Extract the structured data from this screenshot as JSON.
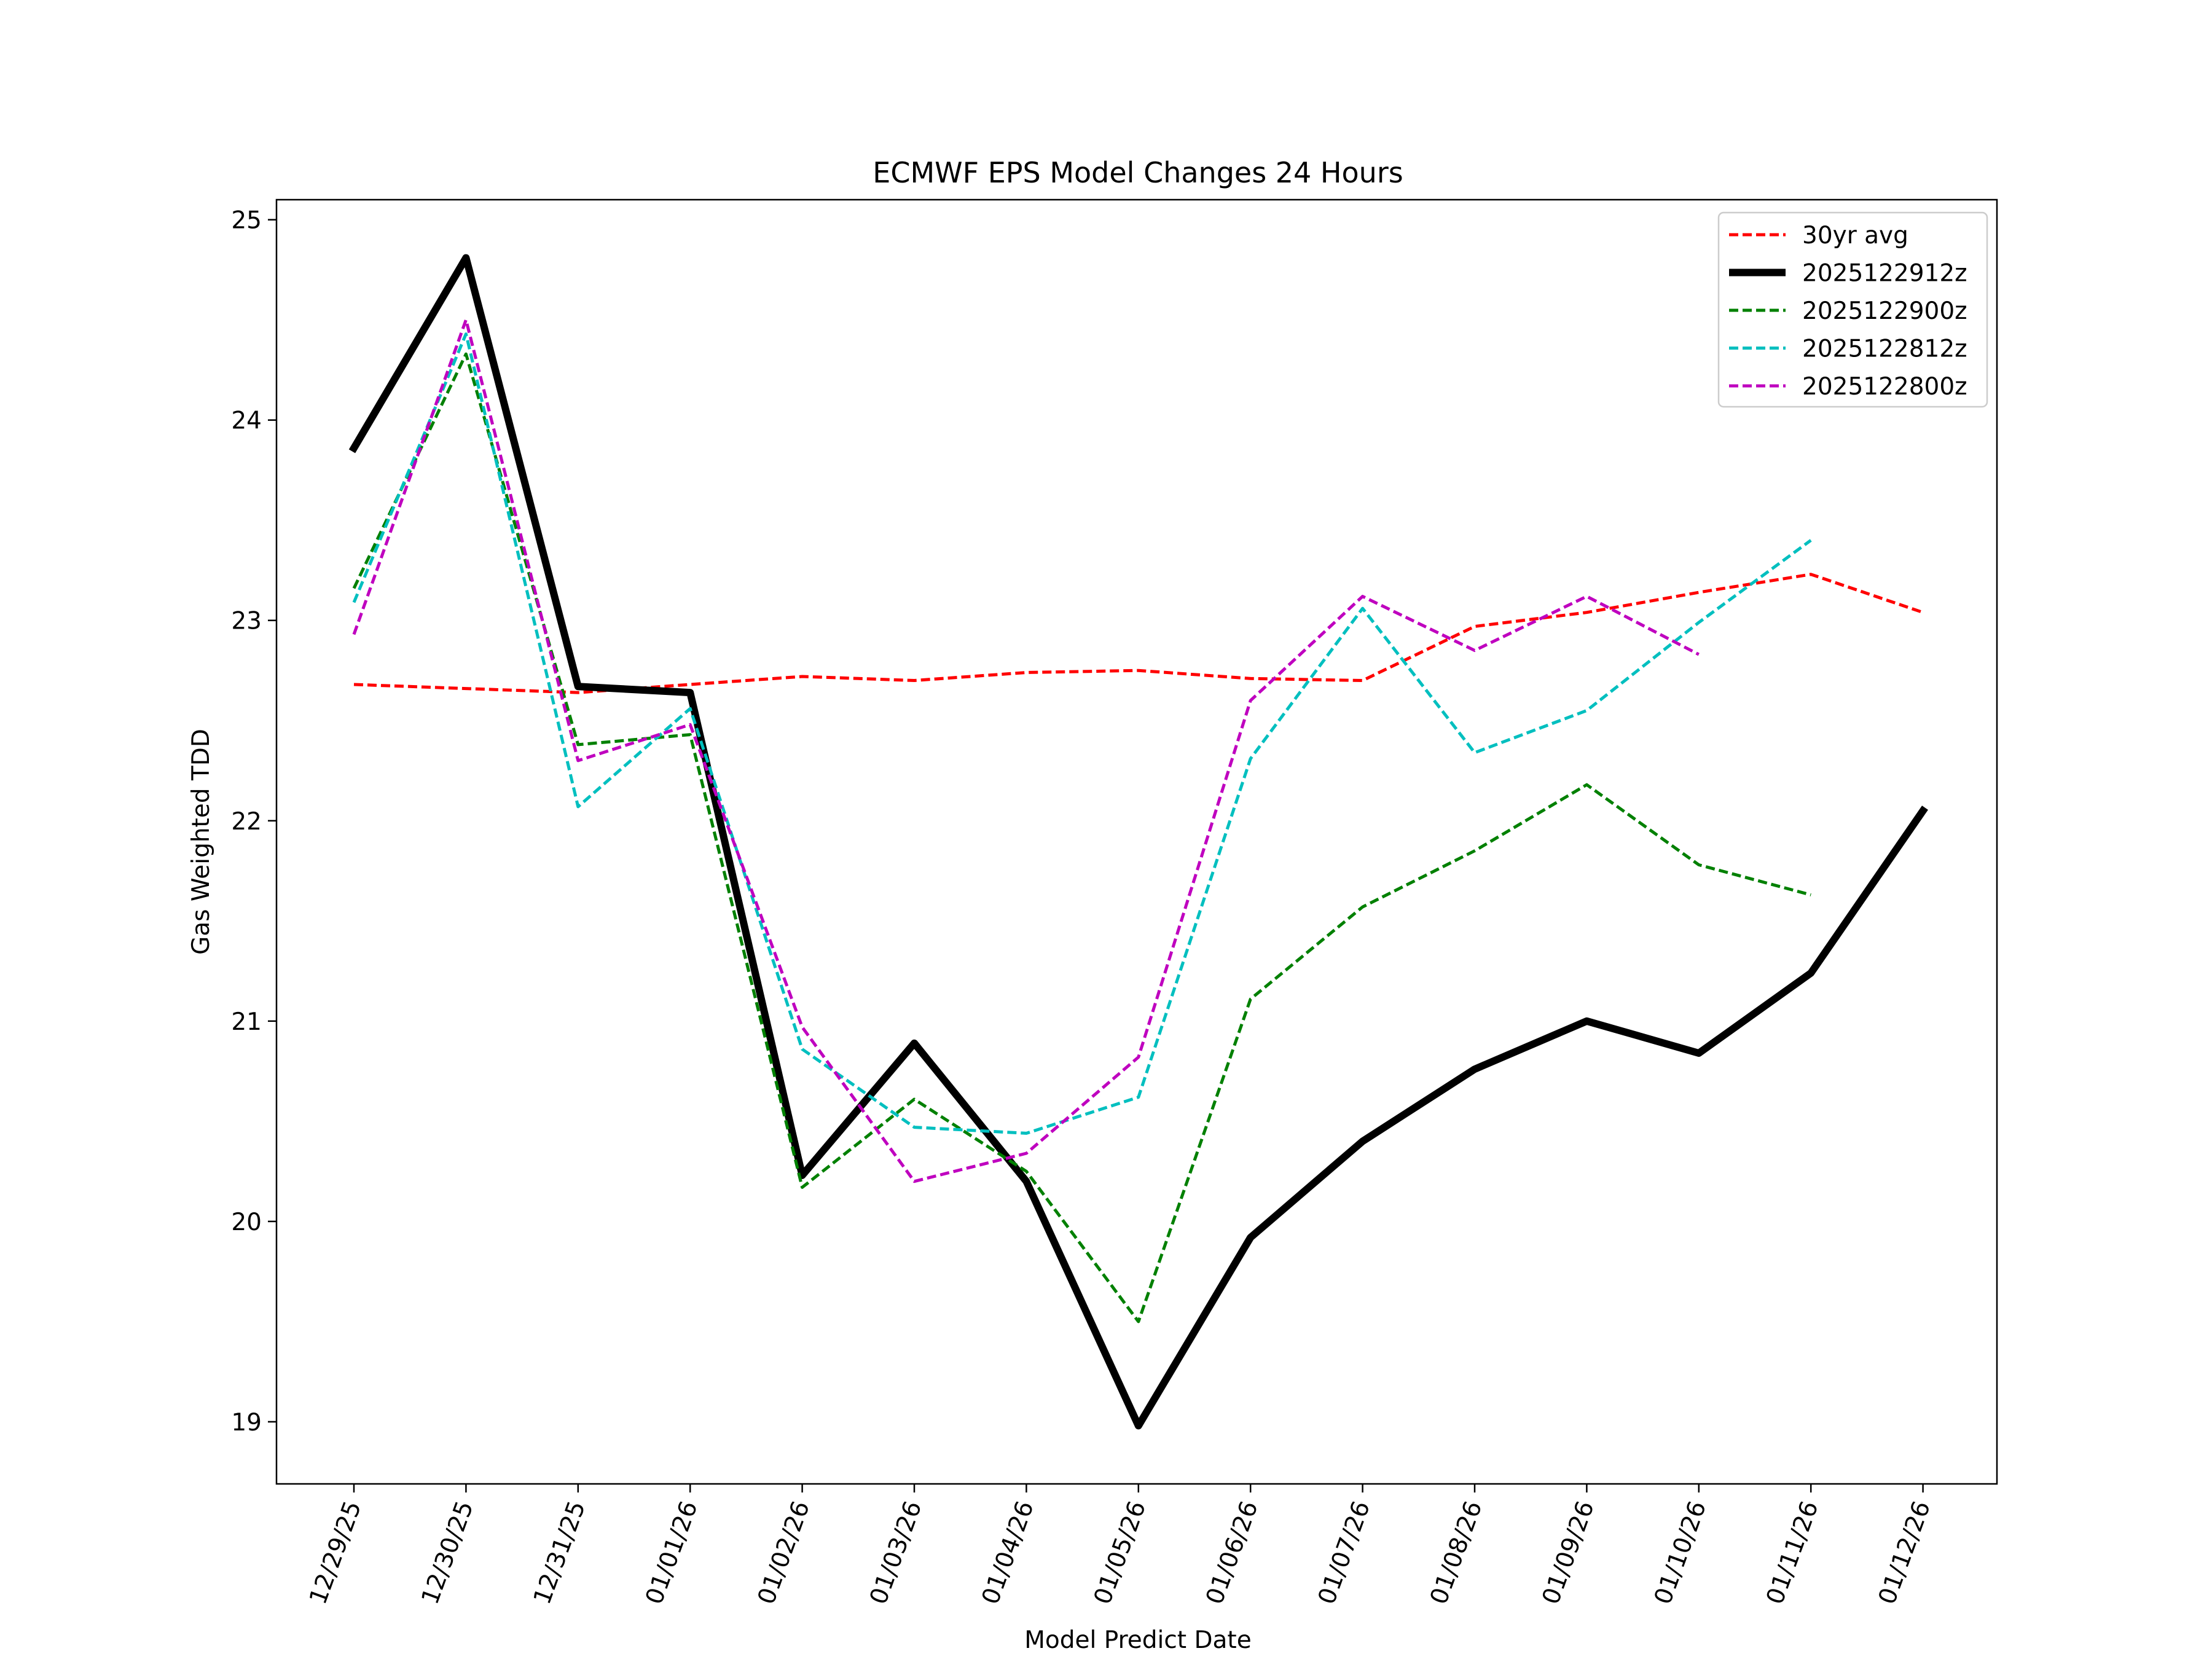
{
  "chart_data": {
    "type": "line",
    "title": "ECMWF EPS Model Changes 24 Hours",
    "xlabel": "Model Predict Date",
    "ylabel": "Gas Weighted TDD",
    "categories": [
      "12/29/25",
      "12/30/25",
      "12/31/25",
      "01/01/26",
      "01/02/26",
      "01/03/26",
      "01/04/26",
      "01/05/26",
      "01/06/26",
      "01/07/26",
      "01/08/26",
      "01/09/26",
      "01/10/26",
      "01/11/26",
      "01/12/26"
    ],
    "yticks": [
      "19",
      "20",
      "21",
      "22",
      "23",
      "24",
      "25"
    ],
    "ylim": [
      18.69,
      25.1
    ],
    "grid": false,
    "legend_position": "top-right",
    "series": [
      {
        "name": "30yr avg",
        "color": "#ff0000",
        "style": "dashed",
        "width": "thin",
        "values": [
          22.68,
          22.66,
          22.64,
          22.68,
          22.72,
          22.7,
          22.74,
          22.75,
          22.71,
          22.7,
          22.97,
          23.04,
          23.14,
          23.23,
          23.04
        ]
      },
      {
        "name": "2025122912z",
        "color": "#000000",
        "style": "solid",
        "width": "thick",
        "values": [
          23.86,
          24.81,
          22.67,
          22.64,
          20.23,
          20.89,
          20.2,
          18.98,
          19.92,
          20.4,
          20.76,
          21.0,
          20.84,
          21.24,
          22.05
        ]
      },
      {
        "name": "2025122900z",
        "color": "#008000",
        "style": "dashed",
        "width": "thin",
        "values": [
          23.16,
          24.33,
          22.38,
          22.43,
          20.17,
          20.61,
          20.25,
          19.5,
          21.11,
          21.57,
          21.85,
          22.18,
          21.78,
          21.63,
          null
        ]
      },
      {
        "name": "2025122812z",
        "color": "#00bfbf",
        "style": "dashed",
        "width": "thin",
        "values": [
          23.09,
          24.43,
          22.07,
          22.56,
          20.86,
          20.47,
          20.44,
          20.62,
          22.31,
          23.06,
          22.34,
          22.55,
          22.99,
          23.4,
          null
        ]
      },
      {
        "name": "2025122800z",
        "color": "#bf00bf",
        "style": "dashed",
        "width": "thin",
        "values": [
          22.93,
          24.5,
          22.3,
          22.48,
          20.97,
          20.2,
          20.34,
          20.82,
          22.6,
          23.12,
          22.85,
          23.12,
          22.83,
          null,
          null
        ]
      }
    ]
  }
}
